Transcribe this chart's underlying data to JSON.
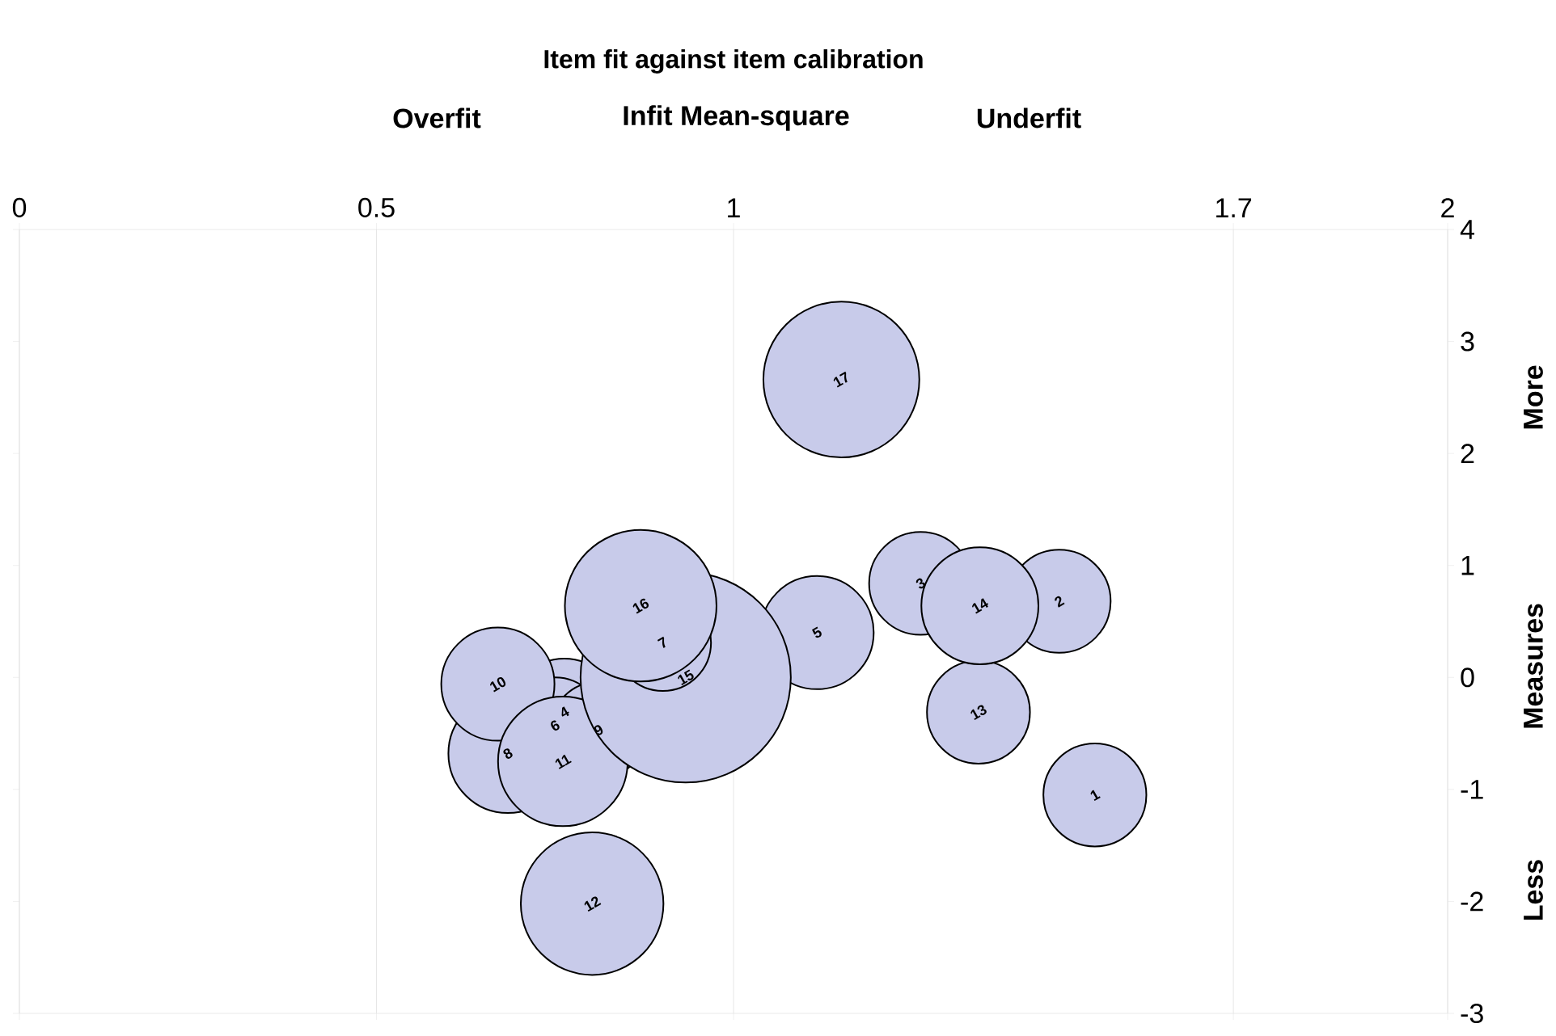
{
  "chart_data": {
    "type": "bubble",
    "title": "Item fit against item calibration",
    "xlabel": "Infit Mean-square",
    "ylabel": "Measures",
    "color": "#c8cbea",
    "x": [
      1.506,
      1.456,
      1.262,
      0.763,
      1.117,
      0.75,
      0.684,
      0.811,
      0.67,
      0.761,
      0.802,
      1.343,
      1.345,
      0.933,
      0.901,
      0.87,
      1.151
    ],
    "values": [
      -1.05,
      0.68,
      0.84,
      -0.31,
      0.4,
      -0.43,
      -0.68,
      -0.47,
      -0.06,
      -0.75,
      -2.02,
      -0.31,
      0.64,
      0.0,
      0.31,
      0.64,
      2.66
    ],
    "sizes": [
      0.24,
      0.24,
      0.24,
      0.26,
      0.29,
      0.21,
      0.32,
      0.21,
      0.29,
      0.38,
      0.46,
      0.24,
      0.31,
      1,
      0.21,
      0.52,
      0.55
    ],
    "xlim": [
      0,
      2
    ],
    "xticks": [
      0,
      0.5,
      1,
      1.7,
      2
    ],
    "ylim": [
      -3,
      4
    ],
    "yticks": [
      -3,
      -2,
      -1,
      0,
      1,
      2,
      3,
      4
    ],
    "grid": "x",
    "annotations": [
      {
        "text": "1",
        "x": 1.506,
        "y": -1.05
      },
      {
        "text": "2",
        "x": 1.456,
        "y": 0.68
      },
      {
        "text": "3",
        "x": 1.262,
        "y": 0.84
      },
      {
        "text": "4",
        "x": 0.763,
        "y": -0.31
      },
      {
        "text": "5",
        "x": 1.117,
        "y": 0.4
      },
      {
        "text": "6",
        "x": 0.75,
        "y": -0.43
      },
      {
        "text": "8",
        "x": 0.684,
        "y": -0.68
      },
      {
        "text": "9",
        "x": 0.811,
        "y": -0.47
      },
      {
        "text": "10",
        "x": 0.67,
        "y": -0.06
      },
      {
        "text": "11",
        "x": 0.761,
        "y": -0.75
      },
      {
        "text": "12",
        "x": 0.802,
        "y": -2.02
      },
      {
        "text": "13",
        "x": 1.343,
        "y": -0.31
      },
      {
        "text": "14",
        "x": 1.345,
        "y": 0.64
      },
      {
        "text": "15",
        "x": 0.933,
        "y": 0.0
      },
      {
        "text": "7",
        "x": 0.901,
        "y": 0.31
      },
      {
        "text": "16",
        "x": 0.87,
        "y": 0.64
      },
      {
        "text": "17",
        "x": 1.151,
        "y": 2.66
      },
      "Overfit",
      "Underfit",
      "More",
      "Less"
    ]
  }
}
